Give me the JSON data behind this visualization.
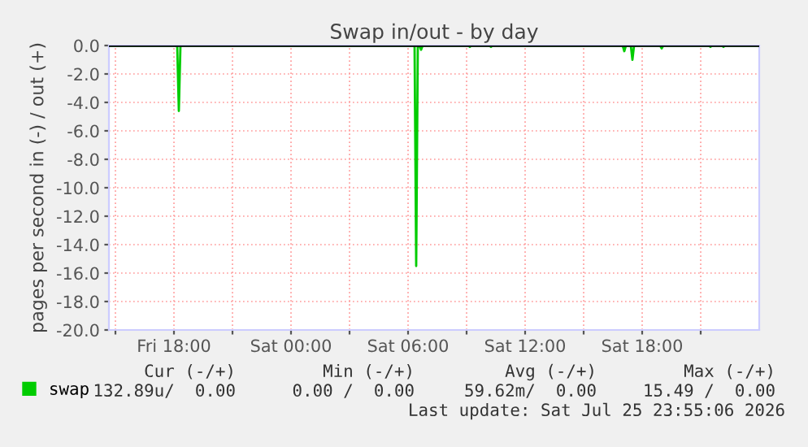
{
  "chart_data": {
    "type": "line",
    "title": "Swap in/out - by day",
    "ylabel": "pages per second in (-) / out (+)",
    "x": [
      "2026-07-24T14:40",
      "2026-07-24T18:10",
      "2026-07-24T18:15",
      "2026-07-24T18:20",
      "2026-07-25T06:20",
      "2026-07-25T06:25",
      "2026-07-25T06:30",
      "2026-07-25T06:35",
      "2026-07-25T06:40",
      "2026-07-25T06:45",
      "2026-07-25T09:05",
      "2026-07-25T09:10",
      "2026-07-25T09:15",
      "2026-07-25T10:10",
      "2026-07-25T10:15",
      "2026-07-25T10:20",
      "2026-07-25T17:00",
      "2026-07-25T17:05",
      "2026-07-25T17:10",
      "2026-07-25T17:25",
      "2026-07-25T17:30",
      "2026-07-25T17:35",
      "2026-07-25T18:55",
      "2026-07-25T19:00",
      "2026-07-25T19:05",
      "2026-07-25T21:25",
      "2026-07-25T21:30",
      "2026-07-25T21:35",
      "2026-07-25T22:05",
      "2026-07-25T22:10",
      "2026-07-25T22:15",
      "2026-07-25T23:55"
    ],
    "series": [
      {
        "name": "swap",
        "color": "#00cc00",
        "values": [
          0,
          0,
          -4.6,
          0,
          0,
          -15.5,
          0,
          0,
          -0.3,
          0,
          0,
          -0.1,
          0,
          0,
          -0.1,
          0,
          0,
          -0.4,
          0,
          0,
          -1.0,
          0,
          0,
          -0.2,
          0,
          0,
          -0.1,
          0,
          0,
          -0.1,
          0,
          0
        ]
      }
    ],
    "xlim": [
      "2026-07-24T14:40",
      "2026-07-26T00:00"
    ],
    "xticks": [
      {
        "value": "2026-07-24T15:00",
        "label": null
      },
      {
        "value": "2026-07-24T18:00",
        "label": "Fri 18:00"
      },
      {
        "value": "2026-07-24T21:00",
        "label": null
      },
      {
        "value": "2026-07-25T00:00",
        "label": "Sat 00:00"
      },
      {
        "value": "2026-07-25T03:00",
        "label": null
      },
      {
        "value": "2026-07-25T06:00",
        "label": "Sat 06:00"
      },
      {
        "value": "2026-07-25T09:00",
        "label": null
      },
      {
        "value": "2026-07-25T12:00",
        "label": "Sat 12:00"
      },
      {
        "value": "2026-07-25T15:00",
        "label": null
      },
      {
        "value": "2026-07-25T18:00",
        "label": "Sat 18:00"
      },
      {
        "value": "2026-07-25T21:00",
        "label": null
      }
    ],
    "ylim": [
      -20,
      0
    ],
    "yticks": [
      {
        "value": 0,
        "label": "0.0"
      },
      {
        "value": -2,
        "label": "-2.0"
      },
      {
        "value": -4,
        "label": "-4.0"
      },
      {
        "value": -6,
        "label": "-6.0"
      },
      {
        "value": -8,
        "label": "-8.0"
      },
      {
        "value": -10,
        "label": "-10.0"
      },
      {
        "value": -12,
        "label": "-12.0"
      },
      {
        "value": -14,
        "label": "-14.0"
      },
      {
        "value": -16,
        "label": "-16.0"
      },
      {
        "value": -18,
        "label": "-18.0"
      },
      {
        "value": -20,
        "label": "-20.0"
      }
    ],
    "ref_lines": [
      {
        "axis": "y",
        "value": 0,
        "color": "#000000"
      }
    ],
    "grid": true,
    "legend": "bottom left",
    "marker": "none",
    "line_style": "solid",
    "annotations": [
      "Cur (-/+)",
      "Min (-/+)",
      "Avg (-/+)",
      "Max (-/+)",
      "132.89u/  0.00",
      "0.00 /  0.00",
      "59.62m/  0.00",
      "15.49 /  0.00",
      "Last update: Sat Jul 25 23:55:06 2026"
    ]
  }
}
